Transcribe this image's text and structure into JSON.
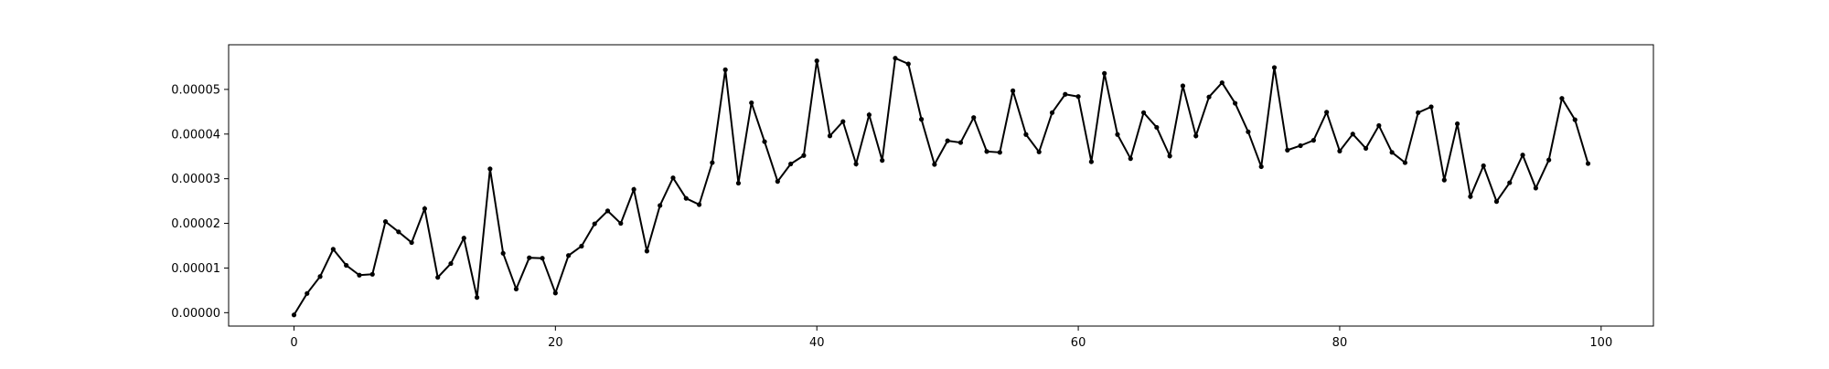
{
  "chart_data": {
    "type": "line",
    "title": "",
    "xlabel": "",
    "ylabel": "",
    "xlim": [
      -5,
      104
    ],
    "ylim": [
      -3e-06,
      6e-05
    ],
    "grid": false,
    "legend": "none",
    "line_color": "#000000",
    "marker": "dot",
    "x_ticks": [
      0,
      20,
      40,
      60,
      80,
      100
    ],
    "x_tick_labels": [
      "0",
      "20",
      "40",
      "60",
      "80",
      "100"
    ],
    "y_ticks": [
      0,
      1e-05,
      2e-05,
      3e-05,
      4e-05,
      5e-05
    ],
    "y_tick_labels": [
      "0.00000",
      "0.00001",
      "0.00002",
      "0.00003",
      "0.00004",
      "0.00005"
    ],
    "x": [
      0,
      1,
      2,
      3,
      4,
      5,
      6,
      7,
      8,
      9,
      10,
      11,
      12,
      13,
      14,
      15,
      16,
      17,
      18,
      19,
      20,
      21,
      22,
      23,
      24,
      25,
      26,
      27,
      28,
      29,
      30,
      31,
      32,
      33,
      34,
      35,
      36,
      37,
      38,
      39,
      40,
      41,
      42,
      43,
      44,
      45,
      46,
      47,
      48,
      49,
      50,
      51,
      52,
      53,
      54,
      55,
      56,
      57,
      58,
      59,
      60,
      61,
      62,
      63,
      64,
      65,
      66,
      67,
      68,
      69,
      70,
      71,
      72,
      73,
      74,
      75,
      76,
      77,
      78,
      79,
      80,
      81,
      82,
      83,
      84,
      85,
      86,
      87,
      88,
      89,
      90,
      91,
      92,
      93,
      94,
      95,
      96,
      97,
      98,
      99
    ],
    "y": [
      -5e-07,
      4.3e-06,
      8.1e-06,
      1.42e-05,
      1.06e-05,
      8.4e-06,
      8.6e-06,
      2.04e-05,
      1.81e-05,
      1.57e-05,
      2.33e-05,
      7.9e-06,
      1.1e-05,
      1.67e-05,
      3.4e-06,
      3.22e-05,
      1.33e-05,
      5.3e-06,
      1.23e-05,
      1.22e-05,
      4.4e-06,
      1.28e-05,
      1.49e-05,
      1.99e-05,
      2.28e-05,
      2e-05,
      2.76e-05,
      1.38e-05,
      2.4e-05,
      3.02e-05,
      2.56e-05,
      2.42e-05,
      3.36e-05,
      5.44e-05,
      2.9e-05,
      4.7e-05,
      3.83e-05,
      2.94e-05,
      3.33e-05,
      3.52e-05,
      5.64e-05,
      3.96e-05,
      4.28e-05,
      3.33e-05,
      4.43e-05,
      3.41e-05,
      5.7e-05,
      5.57e-05,
      4.33e-05,
      3.32e-05,
      3.85e-05,
      3.81e-05,
      4.37e-05,
      3.61e-05,
      3.59e-05,
      4.97e-05,
      3.99e-05,
      3.6e-05,
      4.48e-05,
      4.89e-05,
      4.84e-05,
      3.38e-05,
      5.36e-05,
      3.99e-05,
      3.45e-05,
      4.48e-05,
      4.15e-05,
      3.51e-05,
      5.08e-05,
      3.96e-05,
      4.83e-05,
      5.15e-05,
      4.69e-05,
      4.05e-05,
      3.27e-05,
      5.49e-05,
      3.64e-05,
      3.74e-05,
      3.86e-05,
      4.49e-05,
      3.62e-05,
      4e-05,
      3.68e-05,
      4.19e-05,
      3.59e-05,
      3.36e-05,
      4.48e-05,
      4.61e-05,
      2.97e-05,
      4.23e-05,
      2.6e-05,
      3.29e-05,
      2.49e-05,
      2.91e-05,
      3.53e-05,
      2.79e-05,
      3.42e-05,
      4.8e-05,
      4.32e-05,
      3.34e-05
    ]
  }
}
